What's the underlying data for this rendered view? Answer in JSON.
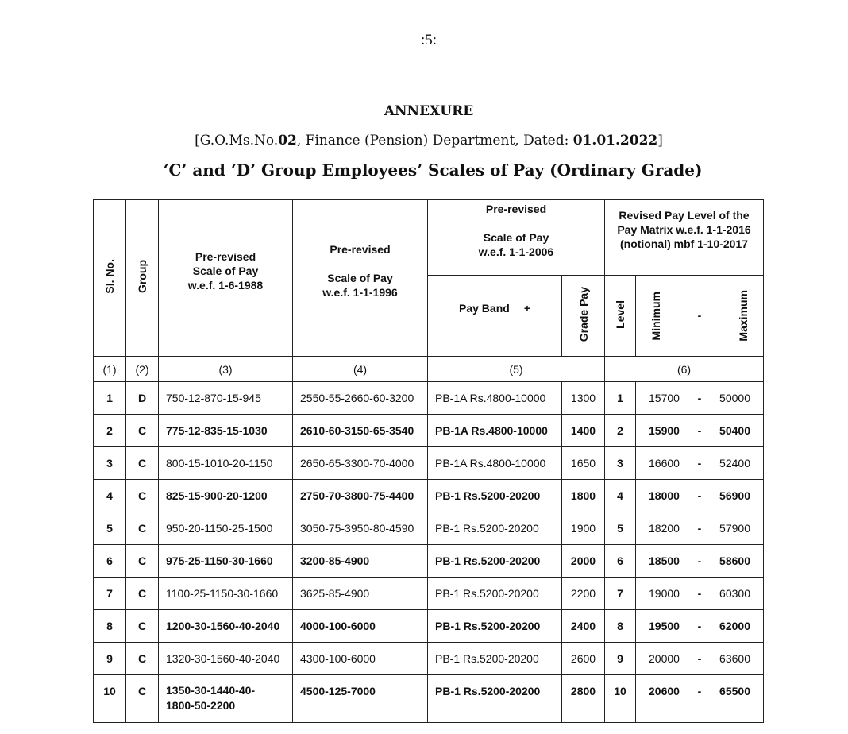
{
  "page_number": ":5:",
  "annexure": "ANNEXURE",
  "reference": {
    "prefix": "[G.O.Ms.No.",
    "go_no": "02",
    "middle": ", Finance (Pension) Department, Dated: ",
    "date": "01.01.2022",
    "suffix": "]"
  },
  "title": "‘C’ and ‘D’ Group Employees’ Scales of Pay (Ordinary Grade)",
  "headers": {
    "sl_no": "Sl. No.",
    "group": "Group",
    "col3": [
      "Pre-revised",
      "Scale of Pay",
      "w.e.f. 1-6-1988"
    ],
    "col4": [
      "Pre-revised",
      "Scale of Pay",
      "w.e.f. 1-1-1996"
    ],
    "col5": [
      "Pre-revised",
      "Scale of Pay",
      "w.e.f. 1-1-2006"
    ],
    "col6": [
      "Revised Pay Level of the",
      "Pay Matrix w.e.f. 1-1-2016",
      "(notional) mbf 1-10-2017"
    ],
    "pay_band": "Pay Band",
    "plus": "+",
    "grade_pay": "Grade Pay",
    "level": "Level",
    "minimum": "Minimum",
    "dash": "-",
    "maximum": "Maximum",
    "numbers": [
      "(1)",
      "(2)",
      "(3)",
      "(4)",
      "(5)",
      "(6)"
    ]
  },
  "rows": [
    {
      "sl": "1",
      "group": "D",
      "s1988": "750-12-870-15-945",
      "s1996": "2550-55-2660-60-3200",
      "band": "PB-1A Rs.4800-10000",
      "gp": "1300",
      "level": "1",
      "min": "15700",
      "max": "50000"
    },
    {
      "sl": "2",
      "group": "C",
      "s1988": "775-12-835-15-1030",
      "s1996": "2610-60-3150-65-3540",
      "band": "PB-1A Rs.4800-10000",
      "gp": "1400",
      "level": "2",
      "min": "15900",
      "max": "50400"
    },
    {
      "sl": "3",
      "group": "C",
      "s1988": "800-15-1010-20-1150",
      "s1996": "2650-65-3300-70-4000",
      "band": "PB-1A Rs.4800-10000",
      "gp": "1650",
      "level": "3",
      "min": "16600",
      "max": "52400"
    },
    {
      "sl": "4",
      "group": "C",
      "s1988": "825-15-900-20-1200",
      "s1996": "2750-70-3800-75-4400",
      "band": "PB-1 Rs.5200-20200",
      "gp": "1800",
      "level": "4",
      "min": "18000",
      "max": "56900"
    },
    {
      "sl": "5",
      "group": "C",
      "s1988": "950-20-1150-25-1500",
      "s1996": "3050-75-3950-80-4590",
      "band": "PB-1 Rs.5200-20200",
      "gp": "1900",
      "level": "5",
      "min": "18200",
      "max": "57900"
    },
    {
      "sl": "6",
      "group": "C",
      "s1988": "975-25-1150-30-1660",
      "s1996": "3200-85-4900",
      "band": "PB-1 Rs.5200-20200",
      "gp": "2000",
      "level": "6",
      "min": "18500",
      "max": "58600"
    },
    {
      "sl": "7",
      "group": "C",
      "s1988": "1100-25-1150-30-1660",
      "s1996": "3625-85-4900",
      "band": "PB-1 Rs.5200-20200",
      "gp": "2200",
      "level": "7",
      "min": "19000",
      "max": "60300"
    },
    {
      "sl": "8",
      "group": "C",
      "s1988": "1200-30-1560-40-2040",
      "s1996": "4000-100-6000",
      "band": "PB-1 Rs.5200-20200",
      "gp": "2400",
      "level": "8",
      "min": "19500",
      "max": "62000"
    },
    {
      "sl": "9",
      "group": "C",
      "s1988": "1320-30-1560-40-2040",
      "s1996": "4300-100-6000",
      "band": "PB-1 Rs.5200-20200",
      "gp": "2600",
      "level": "9",
      "min": "20000",
      "max": "63600"
    },
    {
      "sl": "10",
      "group": "C",
      "s1988": "1350-30-1440-40-1800-50-2200",
      "s1996": "4500-125-7000",
      "band": "PB-1 Rs.5200-20200",
      "gp": "2800",
      "level": "10",
      "min": "20600",
      "max": "65500"
    }
  ]
}
